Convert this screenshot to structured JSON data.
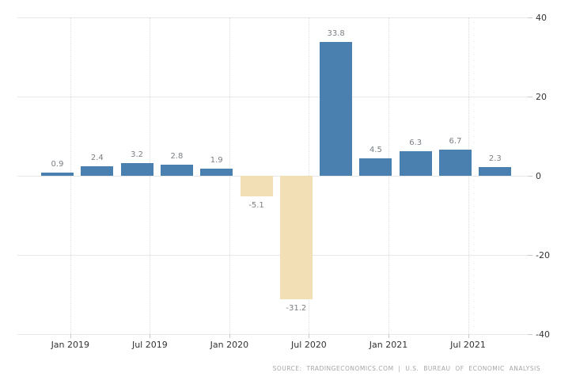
{
  "chart_data": {
    "type": "bar",
    "title": "",
    "values": [
      0.9,
      2.4,
      3.2,
      2.8,
      1.9,
      -5.1,
      -31.2,
      33.8,
      4.5,
      6.3,
      6.7,
      2.3
    ],
    "bar_labels": [
      "0.9",
      "2.4",
      "3.2",
      "2.8",
      "1.9",
      "-5.1",
      "-31.2",
      "33.8",
      "4.5",
      "6.3",
      "6.7",
      "2.3"
    ],
    "x_tick_labels": [
      "Jan 2019",
      "Jul 2019",
      "Jan 2020",
      "Jul 2020",
      "Jan 2021",
      "Jul 2021"
    ],
    "y_ticks": [
      40,
      20,
      0,
      -20,
      -40
    ],
    "y_tick_labels": [
      "40",
      "20",
      "0",
      "-20",
      "-40"
    ],
    "ylim": [
      -40,
      40
    ],
    "y_axis_side": "right",
    "grid": "on",
    "colors": {
      "positive_bar": "#4a80b0",
      "negative_bar": "#f2dfb5",
      "grid_h": "#e8e8e8",
      "grid_v": "#dcdcdc",
      "value_label": "#7a7f84",
      "axis_label": "#333333",
      "source_text": "#a6a6a6",
      "background": "#ffffff"
    },
    "source": "SOURCE: TRADINGECONOMICS.COM | U.S. BUREAU OF ECONOMIC ANALYSIS"
  }
}
